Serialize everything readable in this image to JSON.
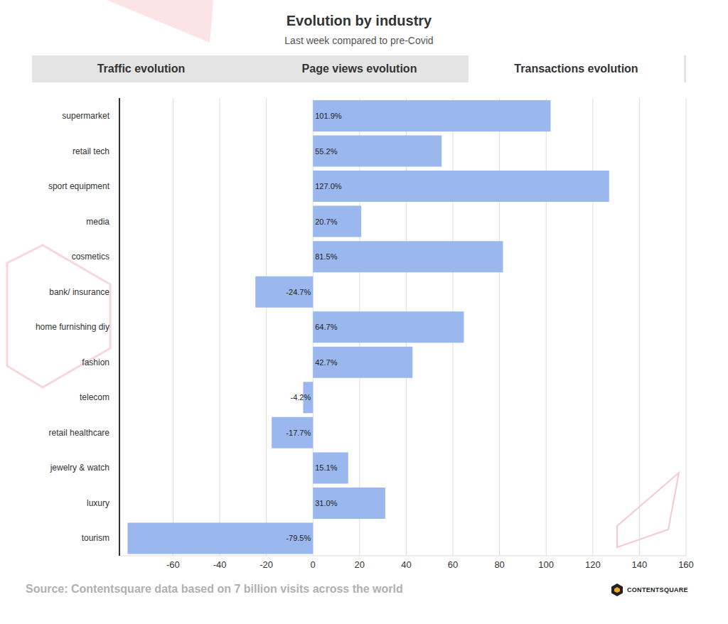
{
  "chart_data": {
    "type": "bar",
    "title": "Evolution by industry",
    "subtitle": "Last week compared to pre-Covid",
    "tabs": [
      "Traffic evolution",
      "Page views evolution",
      "Transactions evolution"
    ],
    "active_tab": "Transactions evolution",
    "annotations": [
      "Source: Contentsquare data based on 7 billion visits across the world",
      "CONTENTSQUARE"
    ],
    "orientation": "horizontal",
    "categories": [
      "supermarket",
      "retail tech",
      "sport equipment",
      "media",
      "cosmetics",
      "bank/ insurance",
      "home furnishing diy",
      "fashion",
      "telecom",
      "retail healthcare",
      "jewelry & watch",
      "luxury",
      "tourism"
    ],
    "values": [
      101.9,
      55.2,
      127.0,
      20.7,
      81.5,
      -24.7,
      64.7,
      42.7,
      -4.2,
      -17.7,
      15.1,
      31.0,
      -79.5
    ],
    "value_labels": [
      "101.9%",
      "55.2%",
      "127.0%",
      "20.7%",
      "81.5%",
      "-24.7%",
      "64.7%",
      "42.7%",
      "-4.2%",
      "-17.7%",
      "15.1%",
      "31.0%",
      "-79.5%"
    ],
    "color": "#9ab8ed",
    "xlim": [
      -83,
      160
    ],
    "xticks": [
      -60,
      -40,
      -20,
      0,
      20,
      40,
      60,
      80,
      100,
      120,
      140,
      160
    ],
    "grid": true,
    "data_labels": true
  }
}
